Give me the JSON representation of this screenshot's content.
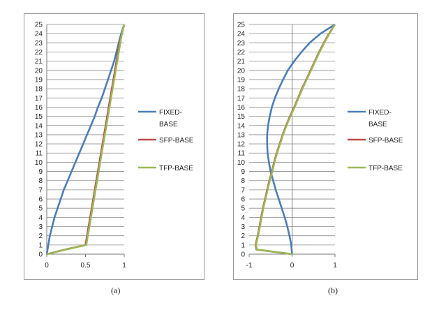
{
  "chart_data": [
    {
      "type": "line",
      "panel_label": "(a)",
      "xlim": [
        0,
        1
      ],
      "ylim": [
        0,
        25
      ],
      "x_ticks": [
        "0",
        "0.5",
        "1"
      ],
      "y_ticks": [
        "0",
        "1",
        "2",
        "3",
        "4",
        "5",
        "6",
        "7",
        "8",
        "9",
        "10",
        "11",
        "12",
        "13",
        "14",
        "15",
        "16",
        "17",
        "18",
        "19",
        "20",
        "21",
        "22",
        "23",
        "24",
        "25"
      ],
      "grid": "horizontal",
      "legend": "right",
      "series": [
        {
          "name": "FIXED-BASE",
          "color": "#4a7ebb",
          "points": [
            [
              0,
              0
            ],
            [
              0.02,
              1
            ],
            [
              0.04,
              2
            ],
            [
              0.07,
              3
            ],
            [
              0.1,
              4
            ],
            [
              0.14,
              5
            ],
            [
              0.18,
              6
            ],
            [
              0.22,
              7
            ],
            [
              0.27,
              8
            ],
            [
              0.32,
              9
            ],
            [
              0.37,
              10
            ],
            [
              0.42,
              11
            ],
            [
              0.47,
              12
            ],
            [
              0.52,
              13
            ],
            [
              0.57,
              14
            ],
            [
              0.62,
              15
            ],
            [
              0.66,
              16
            ],
            [
              0.71,
              17
            ],
            [
              0.75,
              18
            ],
            [
              0.79,
              19
            ],
            [
              0.83,
              20
            ],
            [
              0.87,
              21
            ],
            [
              0.9,
              22
            ],
            [
              0.93,
              23
            ],
            [
              0.96,
              24
            ],
            [
              1,
              25
            ]
          ]
        },
        {
          "name": "SFP-BASE",
          "color": "#be4b48",
          "points": [
            [
              0,
              0
            ],
            [
              0.24,
              0.5
            ],
            [
              0.5,
              1
            ],
            [
              0.51,
              1.5
            ],
            [
              0.52,
              2
            ],
            [
              0.54,
              3
            ],
            [
              0.56,
              4
            ],
            [
              0.58,
              5
            ],
            [
              0.6,
              6
            ],
            [
              0.62,
              7
            ],
            [
              0.64,
              8
            ],
            [
              0.66,
              9
            ],
            [
              0.68,
              10
            ],
            [
              0.7,
              11
            ],
            [
              0.72,
              12
            ],
            [
              0.74,
              13
            ],
            [
              0.76,
              14
            ],
            [
              0.78,
              15
            ],
            [
              0.8,
              16
            ],
            [
              0.82,
              17
            ],
            [
              0.84,
              18
            ],
            [
              0.86,
              19
            ],
            [
              0.88,
              20
            ],
            [
              0.9,
              21
            ],
            [
              0.92,
              22
            ],
            [
              0.94,
              23
            ],
            [
              0.97,
              24
            ],
            [
              1,
              25
            ]
          ]
        },
        {
          "name": "TFP-BASE",
          "color": "#98b954",
          "points": [
            [
              0,
              0
            ],
            [
              0.25,
              0.5
            ],
            [
              0.51,
              1
            ],
            [
              0.52,
              1.5
            ],
            [
              0.53,
              2
            ],
            [
              0.55,
              3
            ],
            [
              0.57,
              4
            ],
            [
              0.59,
              5
            ],
            [
              0.61,
              6
            ],
            [
              0.63,
              7
            ],
            [
              0.65,
              8
            ],
            [
              0.67,
              9
            ],
            [
              0.69,
              10
            ],
            [
              0.71,
              11
            ],
            [
              0.73,
              12
            ],
            [
              0.75,
              13
            ],
            [
              0.77,
              14
            ],
            [
              0.79,
              15
            ],
            [
              0.81,
              16
            ],
            [
              0.83,
              17
            ],
            [
              0.85,
              18
            ],
            [
              0.87,
              19
            ],
            [
              0.89,
              20
            ],
            [
              0.91,
              21
            ],
            [
              0.93,
              22
            ],
            [
              0.95,
              23
            ],
            [
              0.97,
              24
            ],
            [
              1,
              25
            ]
          ]
        }
      ]
    },
    {
      "type": "line",
      "panel_label": "(b)",
      "xlim": [
        -1,
        1
      ],
      "ylim": [
        0,
        25
      ],
      "x_ticks": [
        "-1",
        "0",
        "1"
      ],
      "y_ticks": [
        "0",
        "1",
        "2",
        "3",
        "4",
        "5",
        "6",
        "7",
        "8",
        "9",
        "10",
        "11",
        "12",
        "13",
        "14",
        "15",
        "16",
        "17",
        "18",
        "19",
        "20",
        "21",
        "22",
        "23",
        "24",
        "25"
      ],
      "grid": "horizontal",
      "legend": "right",
      "series": [
        {
          "name": "FIXED-BASE",
          "color": "#4a7ebb",
          "points": [
            [
              0,
              0
            ],
            [
              -0.02,
              1
            ],
            [
              -0.06,
              2
            ],
            [
              -0.11,
              3
            ],
            [
              -0.17,
              4
            ],
            [
              -0.24,
              5
            ],
            [
              -0.31,
              6
            ],
            [
              -0.38,
              7
            ],
            [
              -0.44,
              8
            ],
            [
              -0.5,
              9
            ],
            [
              -0.54,
              10
            ],
            [
              -0.57,
              11
            ],
            [
              -0.58,
              12
            ],
            [
              -0.58,
              13
            ],
            [
              -0.56,
              14
            ],
            [
              -0.52,
              15
            ],
            [
              -0.47,
              16
            ],
            [
              -0.4,
              17
            ],
            [
              -0.31,
              18
            ],
            [
              -0.21,
              19
            ],
            [
              -0.1,
              20
            ],
            [
              0.05,
              21
            ],
            [
              0.22,
              22
            ],
            [
              0.41,
              23
            ],
            [
              0.66,
              24
            ],
            [
              1,
              25
            ]
          ]
        },
        {
          "name": "SFP-BASE",
          "color": "#be4b48",
          "points": [
            [
              0,
              0
            ],
            [
              -0.83,
              0.5
            ],
            [
              -0.85,
              1
            ],
            [
              -0.8,
              2
            ],
            [
              -0.76,
              3
            ],
            [
              -0.72,
              4
            ],
            [
              -0.68,
              5
            ],
            [
              -0.63,
              6
            ],
            [
              -0.58,
              7
            ],
            [
              -0.53,
              8
            ],
            [
              -0.47,
              9
            ],
            [
              -0.42,
              10
            ],
            [
              -0.36,
              11
            ],
            [
              -0.29,
              12
            ],
            [
              -0.22,
              13
            ],
            [
              -0.14,
              14
            ],
            [
              -0.05,
              15
            ],
            [
              0.05,
              16
            ],
            [
              0.14,
              17
            ],
            [
              0.23,
              18
            ],
            [
              0.33,
              19
            ],
            [
              0.43,
              20
            ],
            [
              0.53,
              21
            ],
            [
              0.63,
              22
            ],
            [
              0.74,
              23
            ],
            [
              0.86,
              24
            ],
            [
              1,
              25
            ]
          ]
        },
        {
          "name": "TFP-BASE",
          "color": "#98b954",
          "points": [
            [
              0,
              0
            ],
            [
              -0.82,
              0.5
            ],
            [
              -0.84,
              1
            ],
            [
              -0.79,
              2
            ],
            [
              -0.75,
              3
            ],
            [
              -0.71,
              4
            ],
            [
              -0.67,
              5
            ],
            [
              -0.62,
              6
            ],
            [
              -0.57,
              7
            ],
            [
              -0.52,
              8
            ],
            [
              -0.46,
              9
            ],
            [
              -0.41,
              10
            ],
            [
              -0.35,
              11
            ],
            [
              -0.28,
              12
            ],
            [
              -0.21,
              13
            ],
            [
              -0.13,
              14
            ],
            [
              -0.04,
              15
            ],
            [
              0.06,
              16
            ],
            [
              0.15,
              17
            ],
            [
              0.24,
              18
            ],
            [
              0.34,
              19
            ],
            [
              0.44,
              20
            ],
            [
              0.54,
              21
            ],
            [
              0.64,
              22
            ],
            [
              0.75,
              23
            ],
            [
              0.87,
              24
            ],
            [
              1,
              25
            ]
          ]
        }
      ]
    }
  ]
}
